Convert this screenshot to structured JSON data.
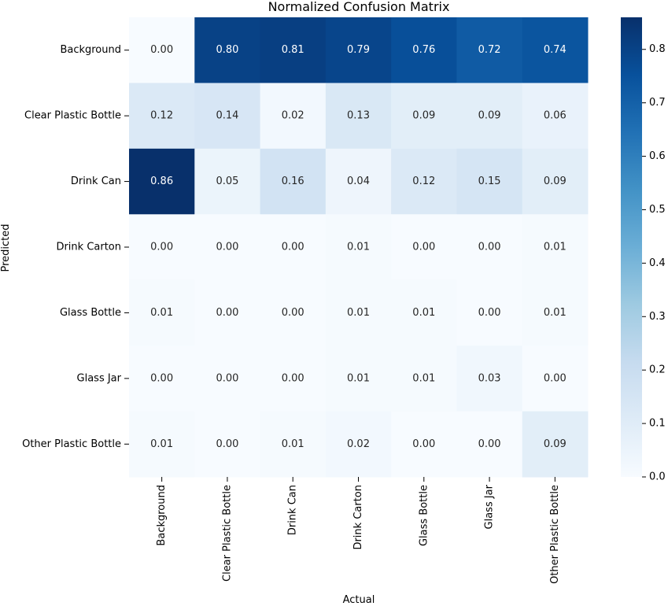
{
  "chart_data": {
    "type": "heatmap",
    "title": "Normalized Confusion Matrix",
    "xlabel": "Actual",
    "ylabel": "Predicted",
    "x_categories": [
      "Background",
      "Clear Plastic Bottle",
      "Drink Can",
      "Drink Carton",
      "Glass Bottle",
      "Glass Jar",
      "Other Plastic Bottle"
    ],
    "y_categories": [
      "Background",
      "Clear Plastic Bottle",
      "Drink Can",
      "Drink Carton",
      "Glass Bottle",
      "Glass Jar",
      "Other Plastic Bottle"
    ],
    "values": [
      [
        0.0,
        0.8,
        0.81,
        0.79,
        0.76,
        0.72,
        0.74
      ],
      [
        0.12,
        0.14,
        0.02,
        0.13,
        0.09,
        0.09,
        0.06
      ],
      [
        0.86,
        0.05,
        0.16,
        0.04,
        0.12,
        0.15,
        0.09
      ],
      [
        0.0,
        0.0,
        0.0,
        0.01,
        0.0,
        0.0,
        0.01
      ],
      [
        0.01,
        0.0,
        0.0,
        0.01,
        0.01,
        0.0,
        0.01
      ],
      [
        0.0,
        0.0,
        0.0,
        0.01,
        0.01,
        0.03,
        0.0
      ],
      [
        0.01,
        0.0,
        0.01,
        0.02,
        0.0,
        0.0,
        0.09
      ]
    ],
    "value_format": "0.00",
    "colormap": "Blues",
    "colorbar": {
      "range": [
        0.0,
        0.86
      ],
      "ticks": [
        0.0,
        0.1,
        0.2,
        0.3,
        0.4,
        0.5,
        0.6,
        0.7,
        0.8
      ],
      "tick_labels": [
        "0.0",
        "0.1",
        "0.2",
        "0.3",
        "0.4",
        "0.5",
        "0.6",
        "0.7",
        "0.8"
      ]
    }
  }
}
